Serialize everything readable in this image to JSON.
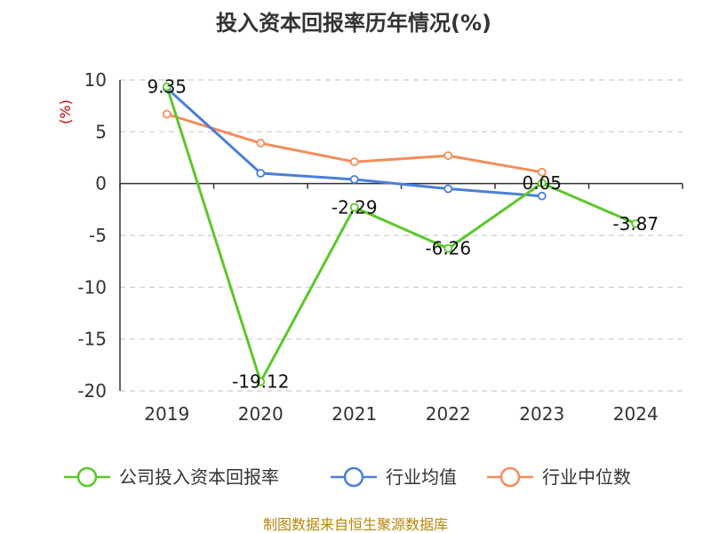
{
  "chart_data": {
    "type": "line",
    "title": "投入资本回报率历年情况(%)",
    "ylabel": "(%)",
    "xlabel": "",
    "categories": [
      "2019",
      "2020",
      "2021",
      "2022",
      "2023",
      "2024"
    ],
    "ylim": [
      -20,
      10
    ],
    "yticks": [
      10,
      5,
      0,
      -5,
      -10,
      -15,
      -20
    ],
    "grid": "horizontal dashed",
    "legend_position": "bottom",
    "series": [
      {
        "name": "公司投入资本回报率",
        "color": "#5cc72a",
        "values": [
          9.35,
          -19.12,
          -2.29,
          -6.26,
          0.05,
          -3.87
        ],
        "labels": [
          "9.35",
          "-19.12",
          "-2.29",
          "-6.26",
          "0.05",
          "-3.87"
        ]
      },
      {
        "name": "行业均值",
        "color": "#4a7fd9",
        "values": [
          9.2,
          1.0,
          0.4,
          -0.5,
          -1.2,
          null
        ]
      },
      {
        "name": "行业中位数",
        "color": "#f58c5a",
        "values": [
          6.7,
          3.9,
          2.1,
          2.7,
          1.1,
          null
        ]
      }
    ]
  },
  "source": "制图数据来自恒生聚源数据库"
}
